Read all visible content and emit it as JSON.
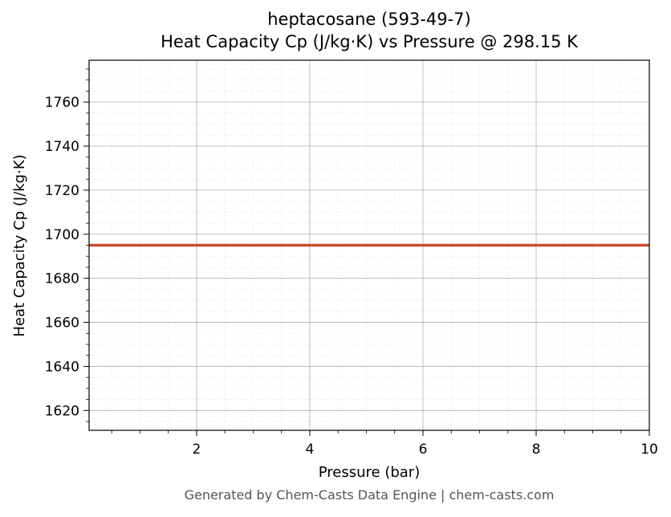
{
  "chart_data": {
    "type": "line",
    "title": "heptacosane (593-49-7)",
    "subtitle": "Heat Capacity Cp (J/kg·K) vs Pressure @ 298.15 K",
    "xlabel": "Pressure (bar)",
    "ylabel": "Heat Capacity Cp (J/kg·K)",
    "xlim": [
      0.1,
      10
    ],
    "ylim": [
      1611,
      1779
    ],
    "xticks": [
      2,
      4,
      6,
      8,
      10
    ],
    "yticks": [
      1620,
      1640,
      1660,
      1680,
      1700,
      1720,
      1740,
      1760
    ],
    "grid": true,
    "legend": "none",
    "series": [
      {
        "color": "#c8502a",
        "x": [
          0.1,
          1,
          2,
          3,
          4,
          5,
          6,
          7,
          8,
          9,
          10
        ],
        "y": [
          1695,
          1695,
          1695,
          1695,
          1695,
          1695,
          1695,
          1695,
          1695,
          1695,
          1695
        ]
      }
    ]
  },
  "footer": "Generated by Chem-Casts Data Engine | chem-casts.com"
}
